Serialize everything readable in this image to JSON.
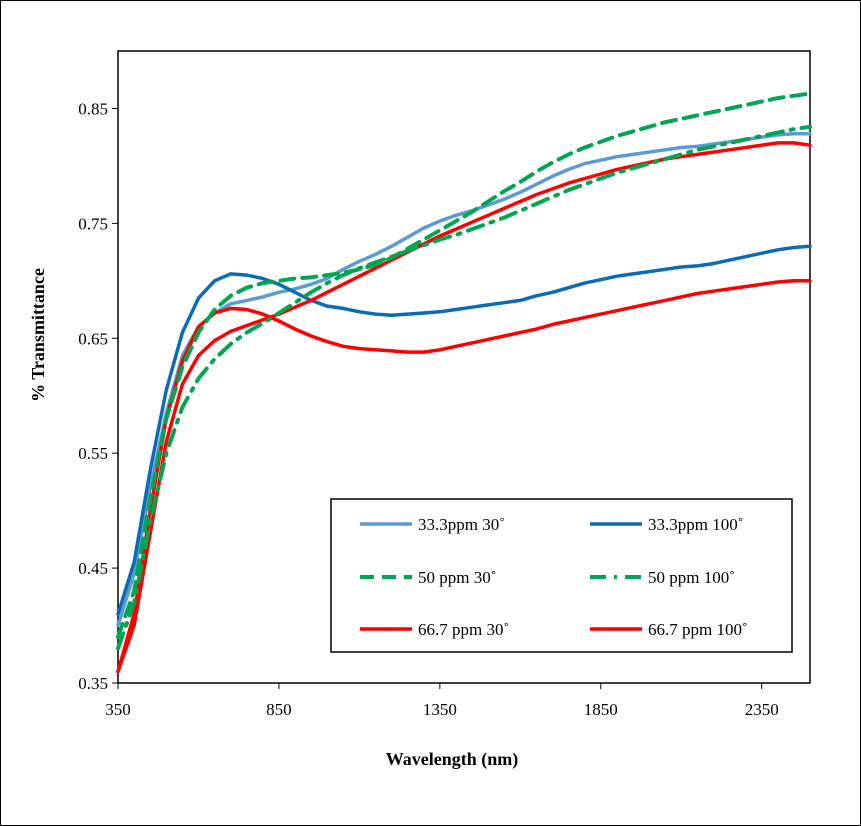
{
  "chart_data": {
    "type": "line",
    "title": "",
    "xlabel": "Wavelength (nm)",
    "ylabel": "% Transmittance",
    "xlim": [
      350,
      2500
    ],
    "ylim": [
      0.35,
      0.9
    ],
    "xticks": [
      350,
      850,
      1350,
      1850,
      2350
    ],
    "xtick_labels": [
      "350",
      "850",
      "1350",
      "1850",
      "2350"
    ],
    "yticks": [
      0.35,
      0.45,
      0.55,
      0.65,
      0.75,
      0.85
    ],
    "ytick_labels": [
      "0.35",
      "0.45",
      "0.55",
      "0.65",
      "0.75",
      "0.85"
    ],
    "grid": false,
    "legend_position": "bottom-right",
    "series": [
      {
        "name": "33.3ppm 30˚",
        "color": "#5B9BD5",
        "style": "solid",
        "x": [
          350,
          400,
          450,
          500,
          550,
          600,
          650,
          700,
          750,
          800,
          850,
          900,
          950,
          1000,
          1050,
          1100,
          1150,
          1200,
          1250,
          1300,
          1350,
          1400,
          1450,
          1500,
          1550,
          1600,
          1650,
          1700,
          1750,
          1800,
          1850,
          1900,
          1950,
          2000,
          2050,
          2100,
          2150,
          2200,
          2250,
          2300,
          2350,
          2400,
          2450,
          2500
        ],
        "y": [
          0.4,
          0.445,
          0.52,
          0.585,
          0.635,
          0.66,
          0.672,
          0.68,
          0.683,
          0.686,
          0.69,
          0.693,
          0.697,
          0.702,
          0.71,
          0.717,
          0.723,
          0.73,
          0.738,
          0.746,
          0.752,
          0.757,
          0.761,
          0.766,
          0.771,
          0.777,
          0.784,
          0.791,
          0.797,
          0.802,
          0.805,
          0.808,
          0.81,
          0.812,
          0.814,
          0.816,
          0.817,
          0.819,
          0.821,
          0.823,
          0.825,
          0.827,
          0.828,
          0.828
        ]
      },
      {
        "name": "33.3ppm 100˚",
        "color": "#0B6BB5",
        "style": "solid",
        "x": [
          350,
          400,
          450,
          500,
          550,
          600,
          650,
          700,
          750,
          800,
          850,
          900,
          950,
          1000,
          1050,
          1100,
          1150,
          1200,
          1250,
          1300,
          1350,
          1400,
          1450,
          1500,
          1550,
          1600,
          1650,
          1700,
          1750,
          1800,
          1850,
          1900,
          1950,
          2000,
          2050,
          2100,
          2150,
          2200,
          2250,
          2300,
          2350,
          2400,
          2450,
          2500
        ],
        "y": [
          0.41,
          0.455,
          0.535,
          0.605,
          0.655,
          0.685,
          0.7,
          0.706,
          0.705,
          0.702,
          0.697,
          0.69,
          0.683,
          0.678,
          0.676,
          0.673,
          0.671,
          0.67,
          0.671,
          0.672,
          0.673,
          0.675,
          0.677,
          0.679,
          0.681,
          0.683,
          0.687,
          0.69,
          0.694,
          0.698,
          0.701,
          0.704,
          0.706,
          0.708,
          0.71,
          0.712,
          0.713,
          0.715,
          0.718,
          0.721,
          0.724,
          0.727,
          0.729,
          0.73
        ]
      },
      {
        "name": "50 ppm 30˚",
        "color": "#00A651",
        "style": "dash",
        "x": [
          350,
          400,
          450,
          500,
          550,
          600,
          650,
          700,
          750,
          800,
          850,
          900,
          950,
          1000,
          1050,
          1100,
          1150,
          1200,
          1250,
          1300,
          1350,
          1400,
          1450,
          1500,
          1550,
          1600,
          1650,
          1700,
          1750,
          1800,
          1850,
          1900,
          1950,
          2000,
          2050,
          2100,
          2150,
          2200,
          2250,
          2300,
          2350,
          2400,
          2450,
          2500
        ],
        "y": [
          0.39,
          0.43,
          0.51,
          0.58,
          0.625,
          0.655,
          0.675,
          0.687,
          0.694,
          0.698,
          0.7,
          0.702,
          0.703,
          0.705,
          0.707,
          0.71,
          0.714,
          0.72,
          0.728,
          0.736,
          0.744,
          0.752,
          0.76,
          0.769,
          0.778,
          0.786,
          0.795,
          0.803,
          0.81,
          0.816,
          0.821,
          0.826,
          0.83,
          0.834,
          0.838,
          0.841,
          0.844,
          0.847,
          0.85,
          0.853,
          0.856,
          0.859,
          0.861,
          0.863
        ]
      },
      {
        "name": "50 ppm 100˚",
        "color": "#00A651",
        "style": "dashdot",
        "x": [
          350,
          400,
          450,
          500,
          550,
          600,
          650,
          700,
          750,
          800,
          850,
          900,
          950,
          1000,
          1050,
          1100,
          1150,
          1200,
          1250,
          1300,
          1350,
          1400,
          1450,
          1500,
          1550,
          1600,
          1650,
          1700,
          1750,
          1800,
          1850,
          1900,
          1950,
          2000,
          2050,
          2100,
          2150,
          2200,
          2250,
          2300,
          2350,
          2400,
          2450,
          2500
        ],
        "y": [
          0.38,
          0.42,
          0.49,
          0.55,
          0.59,
          0.615,
          0.632,
          0.645,
          0.655,
          0.663,
          0.672,
          0.681,
          0.69,
          0.698,
          0.705,
          0.711,
          0.716,
          0.721,
          0.726,
          0.731,
          0.736,
          0.74,
          0.745,
          0.75,
          0.755,
          0.761,
          0.767,
          0.773,
          0.779,
          0.784,
          0.789,
          0.794,
          0.798,
          0.802,
          0.806,
          0.81,
          0.814,
          0.817,
          0.82,
          0.823,
          0.826,
          0.829,
          0.832,
          0.834
        ]
      },
      {
        "name": "66.7 ppm 30˚",
        "color": "#FF0000",
        "style": "solid",
        "x": [
          350,
          400,
          450,
          500,
          550,
          600,
          650,
          700,
          750,
          800,
          850,
          900,
          950,
          1000,
          1050,
          1100,
          1150,
          1200,
          1250,
          1300,
          1350,
          1400,
          1450,
          1500,
          1550,
          1600,
          1650,
          1700,
          1750,
          1800,
          1850,
          1900,
          1950,
          2000,
          2050,
          2100,
          2150,
          2200,
          2250,
          2300,
          2350,
          2400,
          2450,
          2500
        ],
        "y": [
          0.36,
          0.4,
          0.48,
          0.56,
          0.61,
          0.635,
          0.648,
          0.656,
          0.661,
          0.666,
          0.671,
          0.677,
          0.683,
          0.69,
          0.697,
          0.704,
          0.711,
          0.718,
          0.725,
          0.732,
          0.739,
          0.745,
          0.751,
          0.757,
          0.763,
          0.769,
          0.775,
          0.78,
          0.785,
          0.789,
          0.793,
          0.797,
          0.8,
          0.803,
          0.806,
          0.808,
          0.81,
          0.812,
          0.814,
          0.816,
          0.818,
          0.82,
          0.82,
          0.818
        ]
      },
      {
        "name": "66.7 ppm 100˚",
        "color": "#FF0000",
        "style": "solid",
        "x": [
          350,
          400,
          450,
          500,
          550,
          600,
          650,
          700,
          750,
          800,
          850,
          900,
          950,
          1000,
          1050,
          1100,
          1150,
          1200,
          1250,
          1300,
          1350,
          1400,
          1450,
          1500,
          1550,
          1600,
          1650,
          1700,
          1750,
          1800,
          1850,
          1900,
          1950,
          2000,
          2050,
          2100,
          2150,
          2200,
          2250,
          2300,
          2350,
          2400,
          2450,
          2500
        ],
        "y": [
          0.36,
          0.41,
          0.5,
          0.58,
          0.63,
          0.66,
          0.672,
          0.676,
          0.675,
          0.671,
          0.665,
          0.658,
          0.652,
          0.647,
          0.643,
          0.641,
          0.64,
          0.639,
          0.638,
          0.638,
          0.64,
          0.643,
          0.646,
          0.649,
          0.652,
          0.655,
          0.658,
          0.662,
          0.665,
          0.668,
          0.671,
          0.674,
          0.677,
          0.68,
          0.683,
          0.686,
          0.689,
          0.691,
          0.693,
          0.695,
          0.697,
          0.699,
          0.7,
          0.7
        ]
      }
    ]
  }
}
